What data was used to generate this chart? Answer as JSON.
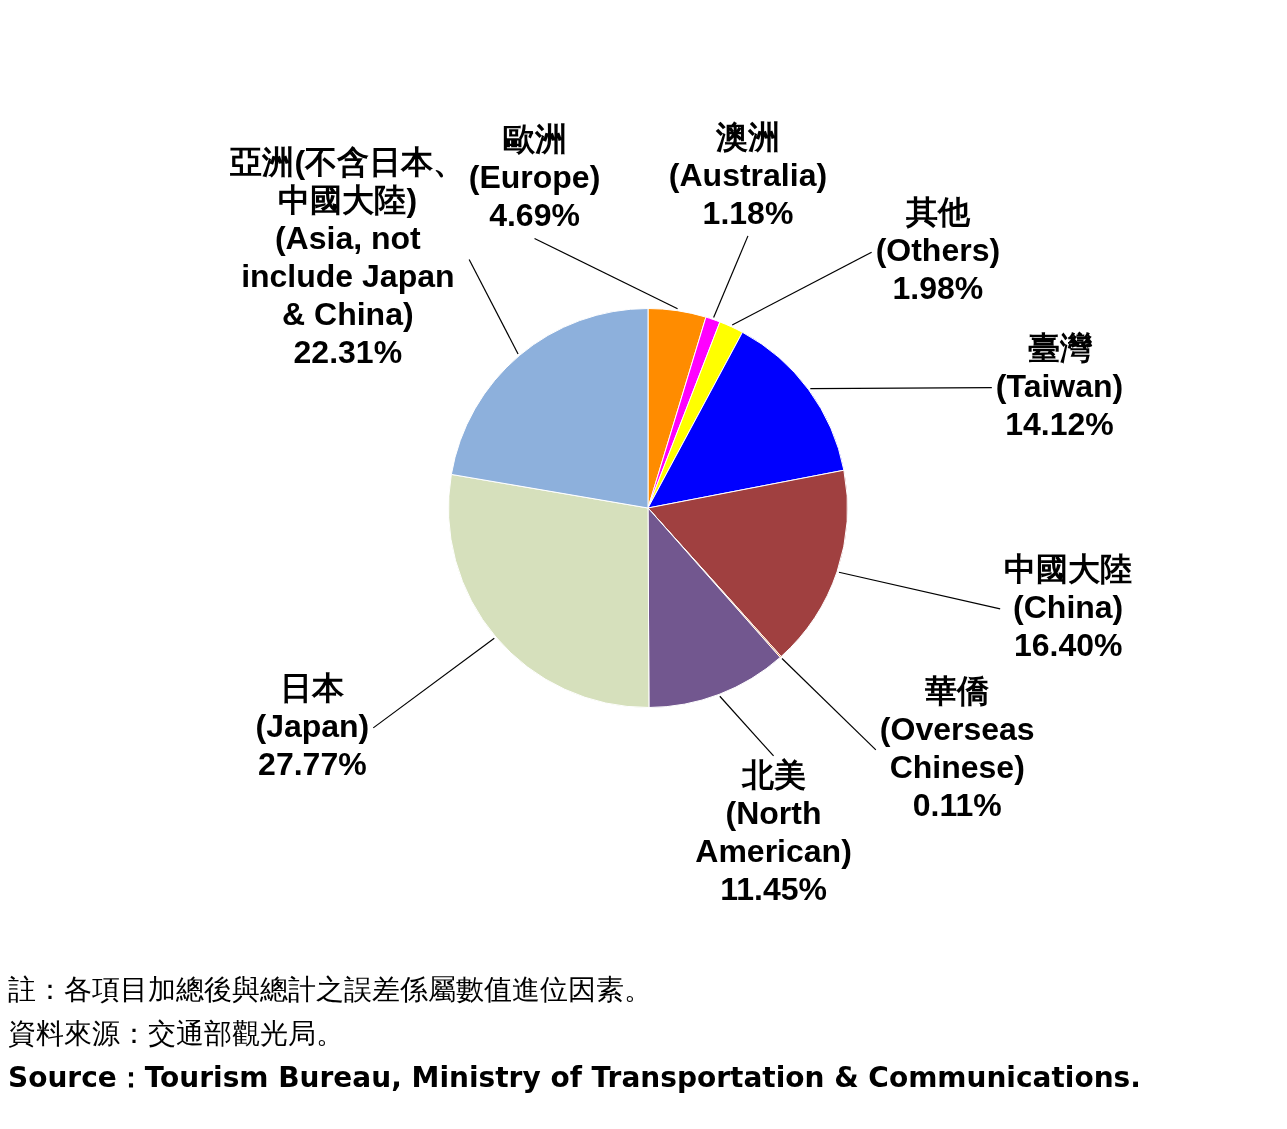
{
  "chart_data": {
    "type": "pie",
    "categories": [
      "歐洲\n(Europe)",
      "澳洲\n(Australia)",
      "其他\n(Others)",
      "臺灣\n(Taiwan)",
      "中國大陸\n(China)",
      "華僑\n(Overseas\nChinese)",
      "北美\n(North\nAmerican)",
      "日本\n(Japan)",
      "亞洲(不含日本、中國大陸)\n(Asia, not\ninclude Japan\n& China)"
    ],
    "values": [
      4.69,
      1.18,
      1.98,
      14.12,
      16.4,
      0.11,
      11.45,
      27.77,
      22.31
    ],
    "value_labels": [
      "4.69%",
      "1.18%",
      "1.98%",
      "14.12%",
      "16.40%",
      "0.11%",
      "11.45%",
      "27.77%",
      "22.31%"
    ],
    "colors": [
      "#ff8c00",
      "#ff00ff",
      "#ffff00",
      "#0000ff",
      "#a04040",
      "#e07020",
      "#72578f",
      "#d6e0bc",
      "#8db0dc"
    ],
    "legend": false,
    "annotations": [
      "註：各項目加總後與總計之誤差係屬數值進位因素。",
      "資料來源：交通部觀光局。",
      "Source：Tourism Bureau, Ministry of Transportation & Communications."
    ]
  }
}
